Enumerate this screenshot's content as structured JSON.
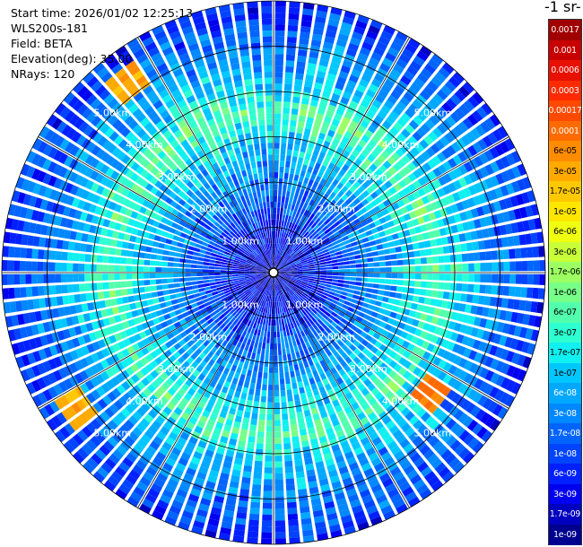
{
  "info": {
    "start_time": "Start time: 2026/01/02 12:25:13",
    "instrument": "WLS200s-181",
    "field": "Field: BETA",
    "elevation": "Elevation(deg): 35.00",
    "nrays": "NRays: 120"
  },
  "unit_label": "-1 sr-",
  "colors": {
    "ring": "#000000",
    "range_label": "#ffffff",
    "low": "#00008f",
    "high": "#800000"
  },
  "colorbar": [
    {
      "label": "0.0017",
      "color": "#a00000"
    },
    {
      "label": "0.001",
      "color": "#c80000"
    },
    {
      "label": "0.0006",
      "color": "#e81000"
    },
    {
      "label": "0.0003",
      "color": "#ff2a00"
    },
    {
      "label": "0.00017",
      "color": "#ff4800"
    },
    {
      "label": "0.0001",
      "color": "#ff6a00"
    },
    {
      "label": "6e-05",
      "color": "#ff8c00"
    },
    {
      "label": "3e-05",
      "color": "#ffaa00"
    },
    {
      "label": "1.7e-05",
      "color": "#ffc800"
    },
    {
      "label": "1e-05",
      "color": "#ffe600"
    },
    {
      "label": "6e-06",
      "color": "#f0ff10"
    },
    {
      "label": "3e-06",
      "color": "#c8ff38"
    },
    {
      "label": "1.7e-06",
      "color": "#9cff62"
    },
    {
      "label": "1e-06",
      "color": "#78ff88"
    },
    {
      "label": "6e-07",
      "color": "#52ffac"
    },
    {
      "label": "3e-07",
      "color": "#2effd0"
    },
    {
      "label": "1.7e-07",
      "color": "#10f0f0"
    },
    {
      "label": "1e-07",
      "color": "#00c8ff"
    },
    {
      "label": "6e-08",
      "color": "#00a8ff"
    },
    {
      "label": "3e-08",
      "color": "#0088ff"
    },
    {
      "label": "1.7e-08",
      "color": "#0064ff"
    },
    {
      "label": "1e-08",
      "color": "#0044ff"
    },
    {
      "label": "6e-09",
      "color": "#0020ff"
    },
    {
      "label": "3e-09",
      "color": "#0000f0"
    },
    {
      "label": "1.7e-09",
      "color": "#0000c0"
    },
    {
      "label": "1e-09",
      "color": "#000090"
    }
  ],
  "chart_data": {
    "type": "heatmap",
    "projection": "polar",
    "field": "BETA",
    "nrays": 120,
    "max_range_km": 6.0,
    "range_rings": [
      {
        "range_km": 1.0,
        "label": "1.00km"
      },
      {
        "range_km": 2.0,
        "label": "2.00km"
      },
      {
        "range_km": 3.0,
        "label": "3.00km"
      },
      {
        "range_km": 4.0,
        "label": "4.00km"
      },
      {
        "range_km": 5.0,
        "label": "5.00km"
      }
    ],
    "spokes_deg": [
      0,
      30,
      60,
      90,
      120,
      150,
      180,
      210,
      240,
      270,
      300,
      330
    ],
    "colorbar_scale": "log",
    "colorbar_range": [
      1e-09,
      0.0017
    ],
    "profile_log10": [
      {
        "range_km": 0.0,
        "value": -8.6
      },
      {
        "range_km": 1.0,
        "value": -8.2
      },
      {
        "range_km": 1.8,
        "value": -7.6
      },
      {
        "range_km": 2.5,
        "value": -7.2
      },
      {
        "range_km": 3.1,
        "value": -6.8
      },
      {
        "range_km": 3.6,
        "value": -6.3
      },
      {
        "range_km": 4.1,
        "value": -6.9
      },
      {
        "range_km": 5.0,
        "value": -7.5
      },
      {
        "range_km": 6.0,
        "value": -8.1
      }
    ],
    "hotspots": [
      {
        "azimuth_deg": 322,
        "range_km": 5.3,
        "value": 3e-05
      },
      {
        "azimuth_deg": 236,
        "range_km": 5.3,
        "value": 3e-05
      },
      {
        "azimuth_deg": 127,
        "range_km": 4.4,
        "value": 6e-05
      }
    ]
  }
}
